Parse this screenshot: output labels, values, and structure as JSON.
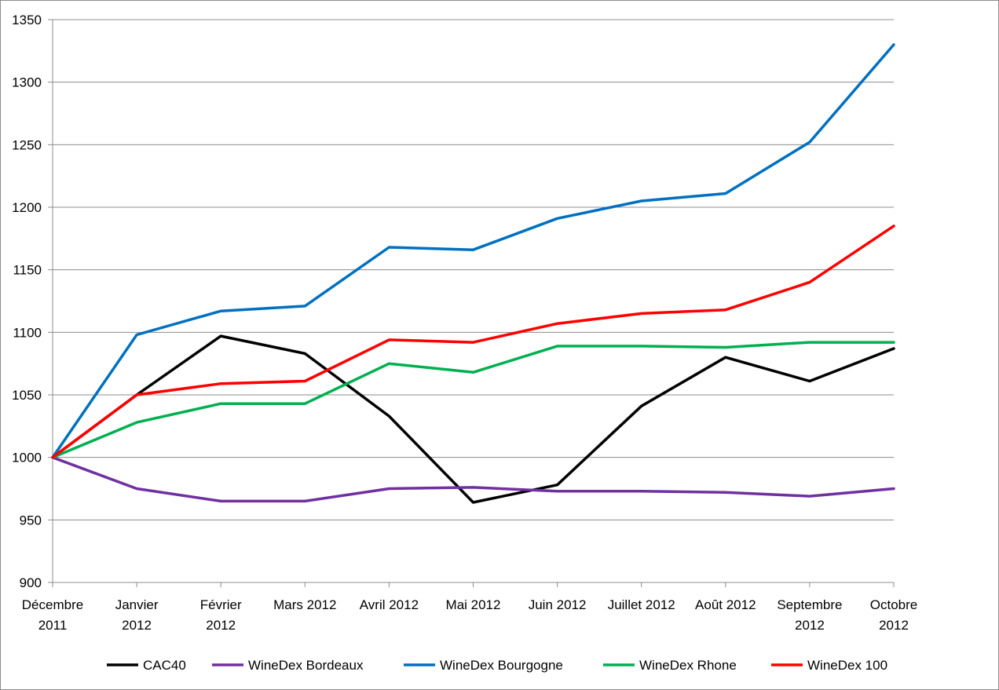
{
  "chart_data": {
    "type": "line",
    "title": "",
    "xlabel": "",
    "ylabel": "",
    "ylim": [
      900,
      1350
    ],
    "ytick_step": 50,
    "grid": "horizontal",
    "legend_position": "bottom",
    "categories": [
      [
        "Décembre",
        "2011"
      ],
      [
        "Janvier",
        "2012"
      ],
      [
        "Février",
        "2012"
      ],
      [
        "Mars 2012"
      ],
      [
        "Avril 2012"
      ],
      [
        "Mai 2012"
      ],
      [
        "Juin 2012"
      ],
      [
        "Juillet 2012"
      ],
      [
        "Août 2012"
      ],
      [
        "Septembre",
        "2012"
      ],
      [
        "Octobre",
        "2012"
      ]
    ],
    "series": [
      {
        "name": "CAC40",
        "color": "#000000",
        "values": [
          1000,
          1050,
          1097,
          1083,
          1033,
          964,
          978,
          1041,
          1080,
          1061,
          1087
        ]
      },
      {
        "name": "WineDex Bordeaux",
        "color": "#7030a0",
        "values": [
          1000,
          975,
          965,
          965,
          975,
          976,
          973,
          973,
          972,
          969,
          975
        ]
      },
      {
        "name": "WineDex Bourgogne",
        "color": "#0070c0",
        "values": [
          1000,
          1098,
          1117,
          1121,
          1168,
          1166,
          1191,
          1205,
          1211,
          1252,
          1330
        ]
      },
      {
        "name": "WineDex Rhone",
        "color": "#00b050",
        "values": [
          1000,
          1028,
          1043,
          1043,
          1075,
          1068,
          1089,
          1089,
          1088,
          1092,
          1092
        ]
      },
      {
        "name": "WineDex 100",
        "color": "#ff0000",
        "values": [
          1000,
          1050,
          1059,
          1061,
          1094,
          1092,
          1107,
          1115,
          1118,
          1140,
          1185
        ]
      }
    ]
  }
}
